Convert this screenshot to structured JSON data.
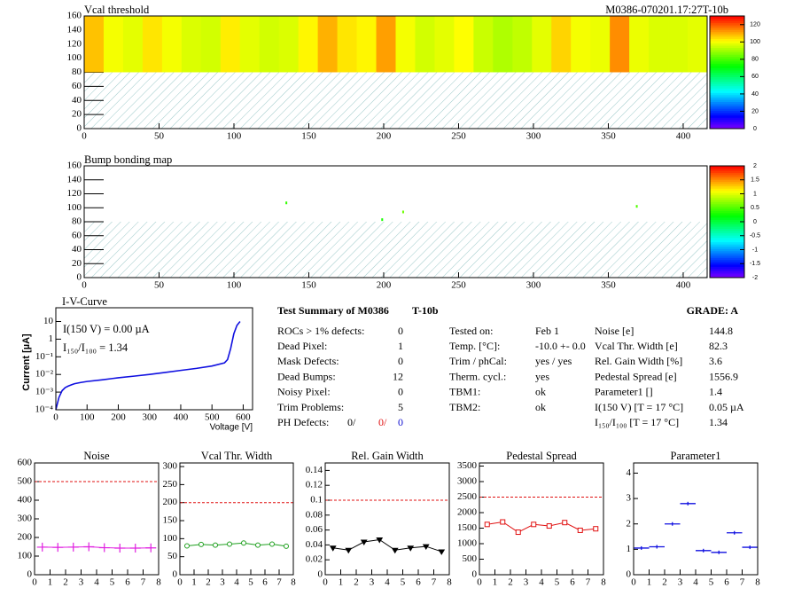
{
  "chart_data": [
    {
      "type": "heatmap",
      "title": "Vcal threshold",
      "annotation": "M0386-070201.17:27T-10b",
      "xlim": [
        0,
        416
      ],
      "ylim": [
        0,
        160
      ],
      "xticks": [
        0,
        50,
        100,
        150,
        200,
        250,
        300,
        350,
        400
      ],
      "yticks": [
        0,
        20,
        40,
        60,
        80,
        100,
        120,
        140,
        160
      ],
      "xbins": [
        0,
        13,
        26,
        39,
        52,
        65,
        78,
        91,
        104,
        117,
        130,
        143,
        156,
        169,
        182,
        195,
        208,
        221,
        234,
        247,
        260,
        273,
        286,
        299,
        312,
        325,
        338,
        351,
        364,
        377,
        390,
        403,
        416
      ],
      "ybins": [
        80,
        160
      ],
      "values": [
        [
          108,
          100,
          98,
          104,
          100,
          97,
          96,
          103,
          98,
          96,
          97,
          102,
          110,
          104,
          102,
          112,
          100,
          96,
          98,
          101,
          95,
          92,
          94,
          98,
          106,
          100,
          99,
          114,
          99,
          97,
          97,
          98
        ]
      ],
      "hatch_below": 80,
      "zlim": [
        0,
        130
      ],
      "zticks": [
        0,
        20,
        40,
        60,
        80,
        100,
        120
      ]
    },
    {
      "type": "scatter",
      "title": "Bump bonding map",
      "marker": "dot",
      "xlim": [
        0,
        416
      ],
      "ylim": [
        0,
        160
      ],
      "xticks": [
        0,
        50,
        100,
        150,
        200,
        250,
        300,
        350,
        400
      ],
      "yticks": [
        0,
        20,
        40,
        60,
        80,
        100,
        120,
        140,
        160
      ],
      "x": [
        135,
        199,
        213,
        369
      ],
      "y": [
        107,
        83,
        94,
        102
      ],
      "z": [
        0.4,
        0.3,
        0.6,
        0.5
      ],
      "hatch_below": 80,
      "zlim": [
        -2,
        2
      ],
      "zticks": [
        -2,
        -1.5,
        -1,
        -0.5,
        0,
        0.5,
        1,
        1.5,
        2
      ]
    },
    {
      "type": "line",
      "title": "I-V-Curve",
      "xlabel": "Voltage [V]",
      "ylabel": "Current [µA]",
      "color": "#1010e0",
      "log_y": true,
      "annotations": [
        "I(150 V) = 0.00 µA",
        "I₁₅₀/I₁₀₀ =  1.34"
      ],
      "xlim": [
        0,
        630
      ],
      "ylim": [
        0.0001,
        60
      ],
      "xticks": [
        0,
        100,
        200,
        300,
        400,
        500,
        600
      ],
      "yticks": [
        {
          "value": 0.0001,
          "label": "10⁻⁴"
        },
        {
          "value": 0.001,
          "label": "10⁻³"
        },
        {
          "value": 0.01,
          "label": "10⁻²"
        },
        {
          "value": 0.1,
          "label": "10⁻¹"
        },
        1,
        10
      ],
      "x": [
        0,
        10,
        20,
        30,
        40,
        50,
        60,
        80,
        100,
        150,
        200,
        250,
        300,
        350,
        400,
        450,
        500,
        540,
        550,
        560,
        570,
        580,
        590
      ],
      "y": [
        0.0001,
        0.0005,
        0.0012,
        0.0018,
        0.0022,
        0.0026,
        0.003,
        0.0035,
        0.004,
        0.005,
        0.0065,
        0.008,
        0.01,
        0.013,
        0.017,
        0.022,
        0.03,
        0.045,
        0.07,
        0.3,
        2,
        6,
        10
      ]
    },
    {
      "type": "line",
      "title": "Noise",
      "color": "#e020e0",
      "marker": "cross",
      "ref": 500,
      "xlim": [
        0,
        8
      ],
      "ylim": [
        0,
        600
      ],
      "xticks": [
        0,
        1,
        2,
        3,
        4,
        5,
        6,
        7,
        8
      ],
      "yticks": [
        0,
        100,
        200,
        300,
        400,
        500,
        600
      ],
      "x": [
        0.5,
        1.5,
        2.5,
        3.5,
        4.5,
        5.5,
        6.5,
        7.5
      ],
      "y": [
        148,
        147,
        148,
        150,
        145,
        143,
        143,
        144
      ]
    },
    {
      "type": "line",
      "title": "Vcal Thr. Width",
      "color": "#20a020",
      "marker": "circle",
      "ref": 200,
      "xlim": [
        0,
        8
      ],
      "ylim": [
        0,
        310
      ],
      "xticks": [
        0,
        1,
        2,
        3,
        4,
        5,
        6,
        7,
        8
      ],
      "yticks": [
        0,
        50,
        100,
        150,
        200,
        250,
        300
      ],
      "x": [
        0.5,
        1.5,
        2.5,
        3.5,
        4.5,
        5.5,
        6.5,
        7.5
      ],
      "y": [
        80,
        84,
        82,
        85,
        88,
        82,
        85,
        79
      ]
    },
    {
      "type": "line",
      "title": "Rel. Gain Width",
      "color": "#000000",
      "marker": "triangle",
      "ref": 0.1,
      "xlim": [
        0,
        8
      ],
      "ylim": [
        0,
        0.15
      ],
      "xticks": [
        0,
        1,
        2,
        3,
        4,
        5,
        6,
        7,
        8
      ],
      "yticks": [
        0,
        0.02,
        0.04,
        0.06,
        0.08,
        0.1,
        0.12,
        0.14
      ],
      "x": [
        0.5,
        1.5,
        2.5,
        3.5,
        4.5,
        5.5,
        6.5,
        7.5
      ],
      "y": [
        0.036,
        0.033,
        0.044,
        0.047,
        0.033,
        0.036,
        0.038,
        0.031
      ]
    },
    {
      "type": "line",
      "title": "Pedestal Spread",
      "color": "#e01010",
      "marker": "square",
      "ref": 2500,
      "xlim": [
        0,
        8
      ],
      "ylim": [
        0,
        3600
      ],
      "xticks": [
        0,
        1,
        2,
        3,
        4,
        5,
        6,
        7,
        8
      ],
      "yticks": [
        0,
        500,
        1000,
        1500,
        2000,
        2500,
        3000,
        3500
      ],
      "x": [
        0.5,
        1.5,
        2.5,
        3.5,
        4.5,
        5.5,
        6.5,
        7.5
      ],
      "y": [
        1620,
        1700,
        1370,
        1620,
        1570,
        1680,
        1430,
        1480
      ]
    },
    {
      "type": "scatter",
      "title": "Parameter1",
      "color": "#1010e0",
      "marker": "hbar",
      "xlim": [
        0,
        8
      ],
      "ylim": [
        0,
        4.4
      ],
      "xticks": [
        0,
        1,
        2,
        3,
        4,
        5,
        6,
        7,
        8
      ],
      "yticks": [
        0,
        1,
        2,
        3,
        4
      ],
      "x": [
        0.5,
        1.5,
        2.5,
        3.5,
        4.5,
        5.5,
        6.5,
        7.5
      ],
      "y": [
        1.05,
        1.1,
        2.0,
        2.8,
        0.95,
        0.88,
        1.65,
        1.08
      ]
    }
  ],
  "summary": {
    "title": "Test Summary of M0386",
    "tag": "T-10b",
    "grade": "GRADE:  A",
    "defects": [
      [
        "ROCs > 1% defects:",
        0
      ],
      [
        "Dead Pixel:",
        1
      ],
      [
        "Mask Defects:",
        0
      ],
      [
        "Dead Bumps:",
        12
      ],
      [
        "Noisy Pixel:",
        0
      ],
      [
        "Trim Problems:",
        5
      ]
    ],
    "ph_defects": {
      "label": "PH Defects:",
      "values": [
        "0/",
        "0/",
        "0"
      ],
      "colors": [
        "#000000",
        "#e01010",
        "#1010d0"
      ]
    },
    "conditions": [
      [
        "Tested on:",
        "Feb 1"
      ],
      [
        "Temp. [°C]:",
        "-10.0 +- 0.0"
      ],
      [
        "Trim / phCal:",
        "yes / yes"
      ],
      [
        "Therm. cycl.:",
        "yes"
      ],
      [
        "TBM1:",
        "ok"
      ],
      [
        "TBM2:",
        "ok"
      ]
    ],
    "results": [
      [
        "Noise [e]",
        144.8
      ],
      [
        "Vcal Thr. Width [e]",
        82.3
      ],
      [
        "Rel. Gain Width [%]",
        3.6
      ],
      [
        "Pedestal Spread [e]",
        1556.9
      ],
      [
        "Parameter1 []",
        1.4
      ],
      [
        "I(150 V) [T = 17 °C]",
        "0.05 µA"
      ],
      [
        "I₁₅₀/I₁₀₀  [T = 17 °C]",
        1.34
      ]
    ]
  }
}
